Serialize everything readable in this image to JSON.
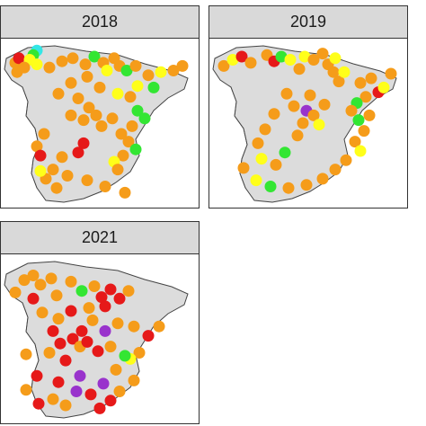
{
  "colors": {
    "land": "#dcdcdc",
    "border": "#444444",
    "strip": "#d9d9d9",
    "orange": "#f59c1a",
    "yellow": "#ffff1a",
    "green": "#33e633",
    "red": "#e61919",
    "purple": "#9933cc",
    "cyan": "#33e6e6"
  },
  "panels": [
    {
      "year": "2018",
      "points": [
        [
          "#f59c1a",
          0.05,
          0.11
        ],
        [
          "#e61919",
          0.07,
          0.08
        ],
        [
          "#33e6e6",
          0.17,
          0.03
        ],
        [
          "#33e633",
          0.15,
          0.06
        ],
        [
          "#ffff1a",
          0.13,
          0.09
        ],
        [
          "#f59c1a",
          0.1,
          0.14
        ],
        [
          "#f59c1a",
          0.06,
          0.17
        ],
        [
          "#ffff1a",
          0.17,
          0.12
        ],
        [
          "#f59c1a",
          0.24,
          0.14
        ],
        [
          "#f59c1a",
          0.31,
          0.1
        ],
        [
          "#f59c1a",
          0.37,
          0.08
        ],
        [
          "#f59c1a",
          0.44,
          0.12
        ],
        [
          "#33e633",
          0.49,
          0.07
        ],
        [
          "#f59c1a",
          0.54,
          0.11
        ],
        [
          "#f59c1a",
          0.6,
          0.08
        ],
        [
          "#f59c1a",
          0.63,
          0.13
        ],
        [
          "#ffff1a",
          0.56,
          0.16
        ],
        [
          "#33e633",
          0.67,
          0.16
        ],
        [
          "#f59c1a",
          0.72,
          0.13
        ],
        [
          "#f59c1a",
          0.79,
          0.19
        ],
        [
          "#ffff1a",
          0.86,
          0.17
        ],
        [
          "#f59c1a",
          0.93,
          0.16
        ],
        [
          "#f59c1a",
          0.98,
          0.13
        ],
        [
          "#ffff1a",
          0.73,
          0.26
        ],
        [
          "#33e633",
          0.82,
          0.27
        ],
        [
          "#f59c1a",
          0.69,
          0.33
        ],
        [
          "#ffff1a",
          0.62,
          0.31
        ],
        [
          "#f59c1a",
          0.52,
          0.27
        ],
        [
          "#f59c1a",
          0.45,
          0.2
        ],
        [
          "#f59c1a",
          0.36,
          0.24
        ],
        [
          "#f59c1a",
          0.29,
          0.31
        ],
        [
          "#f59c1a",
          0.4,
          0.34
        ],
        [
          "#f59c1a",
          0.46,
          0.4
        ],
        [
          "#f59c1a",
          0.5,
          0.45
        ],
        [
          "#f59c1a",
          0.43,
          0.48
        ],
        [
          "#f59c1a",
          0.36,
          0.45
        ],
        [
          "#f59c1a",
          0.53,
          0.52
        ],
        [
          "#f59c1a",
          0.59,
          0.47
        ],
        [
          "#33e633",
          0.73,
          0.42
        ],
        [
          "#33e633",
          0.77,
          0.47
        ],
        [
          "#f59c1a",
          0.7,
          0.52
        ],
        [
          "#f59c1a",
          0.64,
          0.57
        ],
        [
          "#f59c1a",
          0.68,
          0.62
        ],
        [
          "#33e633",
          0.72,
          0.67
        ],
        [
          "#f59c1a",
          0.65,
          0.71
        ],
        [
          "#ffff1a",
          0.6,
          0.75
        ],
        [
          "#f59c1a",
          0.62,
          0.8
        ],
        [
          "#e61919",
          0.43,
          0.63
        ],
        [
          "#e61919",
          0.4,
          0.69
        ],
        [
          "#f59c1a",
          0.31,
          0.72
        ],
        [
          "#f59c1a",
          0.21,
          0.57
        ],
        [
          "#f59c1a",
          0.17,
          0.65
        ],
        [
          "#e61919",
          0.19,
          0.71
        ],
        [
          "#f59c1a",
          0.26,
          0.8
        ],
        [
          "#f59c1a",
          0.22,
          0.86
        ],
        [
          "#f59c1a",
          0.28,
          0.92
        ],
        [
          "#f59c1a",
          0.34,
          0.84
        ],
        [
          "#f59c1a",
          0.45,
          0.87
        ],
        [
          "#f59c1a",
          0.55,
          0.91
        ],
        [
          "#f59c1a",
          0.66,
          0.95
        ],
        [
          "#ffff1a",
          0.19,
          0.81
        ]
      ]
    },
    {
      "year": "2019",
      "points": [
        [
          "#f59c1a",
          0.05,
          0.13
        ],
        [
          "#ffff1a",
          0.1,
          0.09
        ],
        [
          "#e61919",
          0.15,
          0.07
        ],
        [
          "#f59c1a",
          0.2,
          0.11
        ],
        [
          "#f59c1a",
          0.29,
          0.06
        ],
        [
          "#e61919",
          0.33,
          0.1
        ],
        [
          "#33e633",
          0.37,
          0.07
        ],
        [
          "#ffff1a",
          0.42,
          0.09
        ],
        [
          "#f59c1a",
          0.47,
          0.15
        ],
        [
          "#ffff1a",
          0.5,
          0.07
        ],
        [
          "#f59c1a",
          0.55,
          0.09
        ],
        [
          "#f59c1a",
          0.6,
          0.05
        ],
        [
          "#f59c1a",
          0.63,
          0.12
        ],
        [
          "#f59c1a",
          0.66,
          0.17
        ],
        [
          "#f59c1a",
          0.69,
          0.23
        ],
        [
          "#ffff1a",
          0.72,
          0.17
        ],
        [
          "#ffff1a",
          0.67,
          0.08
        ],
        [
          "#f59c1a",
          0.81,
          0.24
        ],
        [
          "#f59c1a",
          0.87,
          0.21
        ],
        [
          "#e61919",
          0.91,
          0.3
        ],
        [
          "#ffff1a",
          0.94,
          0.27
        ],
        [
          "#f59c1a",
          0.98,
          0.18
        ],
        [
          "#f59c1a",
          0.84,
          0.33
        ],
        [
          "#33e633",
          0.79,
          0.37
        ],
        [
          "#f59c1a",
          0.76,
          0.42
        ],
        [
          "#33e633",
          0.8,
          0.48
        ],
        [
          "#f59c1a",
          0.86,
          0.45
        ],
        [
          "#f59c1a",
          0.83,
          0.55
        ],
        [
          "#f59c1a",
          0.78,
          0.62
        ],
        [
          "#ffff1a",
          0.81,
          0.68
        ],
        [
          "#f59c1a",
          0.73,
          0.74
        ],
        [
          "#f59c1a",
          0.67,
          0.8
        ],
        [
          "#f59c1a",
          0.6,
          0.86
        ],
        [
          "#f59c1a",
          0.51,
          0.9
        ],
        [
          "#f59c1a",
          0.41,
          0.92
        ],
        [
          "#33e633",
          0.31,
          0.91
        ],
        [
          "#ffff1a",
          0.23,
          0.87
        ],
        [
          "#f59c1a",
          0.16,
          0.79
        ],
        [
          "#ffff1a",
          0.26,
          0.73
        ],
        [
          "#f59c1a",
          0.34,
          0.77
        ],
        [
          "#33e633",
          0.39,
          0.69
        ],
        [
          "#f59c1a",
          0.46,
          0.58
        ],
        [
          "#9933cc",
          0.51,
          0.42
        ],
        [
          "#f59c1a",
          0.55,
          0.45
        ],
        [
          "#ffff1a",
          0.58,
          0.51
        ],
        [
          "#f59c1a",
          0.49,
          0.5
        ],
        [
          "#f59c1a",
          0.44,
          0.39
        ],
        [
          "#f59c1a",
          0.4,
          0.31
        ],
        [
          "#f59c1a",
          0.33,
          0.44
        ],
        [
          "#f59c1a",
          0.28,
          0.54
        ],
        [
          "#f59c1a",
          0.24,
          0.63
        ],
        [
          "#f59c1a",
          0.53,
          0.32
        ],
        [
          "#f59c1a",
          0.61,
          0.38
        ]
      ]
    },
    {
      "year": "2021",
      "points": [
        [
          "#f59c1a",
          0.05,
          0.2
        ],
        [
          "#f59c1a",
          0.1,
          0.12
        ],
        [
          "#f59c1a",
          0.15,
          0.09
        ],
        [
          "#f59c1a",
          0.19,
          0.15
        ],
        [
          "#f59c1a",
          0.25,
          0.11
        ],
        [
          "#e61919",
          0.15,
          0.24
        ],
        [
          "#f59c1a",
          0.28,
          0.22
        ],
        [
          "#f59c1a",
          0.36,
          0.13
        ],
        [
          "#33e633",
          0.42,
          0.19
        ],
        [
          "#f59c1a",
          0.49,
          0.16
        ],
        [
          "#e61919",
          0.53,
          0.23
        ],
        [
          "#e61919",
          0.58,
          0.18
        ],
        [
          "#e61919",
          0.63,
          0.24
        ],
        [
          "#f59c1a",
          0.68,
          0.19
        ],
        [
          "#e61919",
          0.55,
          0.29
        ],
        [
          "#f59c1a",
          0.48,
          0.38
        ],
        [
          "#e61919",
          0.42,
          0.45
        ],
        [
          "#e61919",
          0.37,
          0.5
        ],
        [
          "#f59c1a",
          0.41,
          0.55
        ],
        [
          "#e61919",
          0.45,
          0.52
        ],
        [
          "#e61919",
          0.3,
          0.53
        ],
        [
          "#e61919",
          0.26,
          0.45
        ],
        [
          "#f59c1a",
          0.29,
          0.37
        ],
        [
          "#f59c1a",
          0.24,
          0.59
        ],
        [
          "#e61919",
          0.33,
          0.64
        ],
        [
          "#e61919",
          0.51,
          0.58
        ],
        [
          "#f59c1a",
          0.58,
          0.55
        ],
        [
          "#9933cc",
          0.55,
          0.45
        ],
        [
          "#f59c1a",
          0.62,
          0.4
        ],
        [
          "#f59c1a",
          0.71,
          0.42
        ],
        [
          "#e61919",
          0.79,
          0.48
        ],
        [
          "#f59c1a",
          0.74,
          0.59
        ],
        [
          "#ffff1a",
          0.69,
          0.63
        ],
        [
          "#33e633",
          0.66,
          0.61
        ],
        [
          "#f59c1a",
          0.61,
          0.7
        ],
        [
          "#9933cc",
          0.41,
          0.74
        ],
        [
          "#9933cc",
          0.39,
          0.84
        ],
        [
          "#e61919",
          0.29,
          0.78
        ],
        [
          "#e61919",
          0.17,
          0.74
        ],
        [
          "#f59c1a",
          0.11,
          0.83
        ],
        [
          "#e61919",
          0.18,
          0.92
        ],
        [
          "#f59c1a",
          0.26,
          0.89
        ],
        [
          "#f59c1a",
          0.33,
          0.93
        ],
        [
          "#e61919",
          0.47,
          0.86
        ],
        [
          "#9933cc",
          0.54,
          0.79
        ],
        [
          "#e61919",
          0.58,
          0.9
        ],
        [
          "#e61919",
          0.52,
          0.95
        ],
        [
          "#f59c1a",
          0.63,
          0.84
        ],
        [
          "#f59c1a",
          0.71,
          0.77
        ],
        [
          "#f59c1a",
          0.11,
          0.6
        ],
        [
          "#f59c1a",
          0.46,
          0.3
        ],
        [
          "#e61919",
          0.36,
          0.32
        ],
        [
          "#f59c1a",
          0.2,
          0.33
        ],
        [
          "#f59c1a",
          0.85,
          0.42
        ]
      ]
    }
  ]
}
